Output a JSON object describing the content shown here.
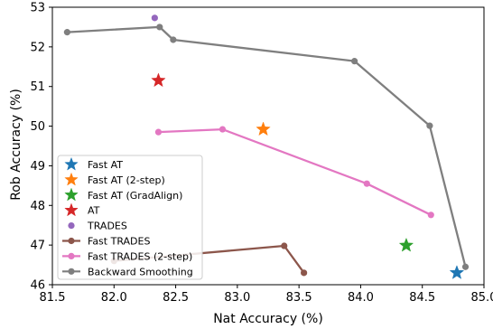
{
  "chart_data": {
    "type": "scatter",
    "xlabel": "Nat Accuracy (%)",
    "ylabel": "Rob Accuracy (%)",
    "xlim": [
      81.5,
      85.0
    ],
    "ylim": [
      46.0,
      53.0
    ],
    "xticks": [
      81.5,
      82.0,
      82.5,
      83.0,
      83.5,
      84.0,
      84.5,
      85.0
    ],
    "xtick_labels": [
      "81.5",
      "82.0",
      "82.5",
      "83.0",
      "83.5",
      "84.0",
      "84.5",
      "85.0"
    ],
    "yticks": [
      46,
      47,
      48,
      49,
      50,
      51,
      52,
      53
    ],
    "ytick_labels": [
      "46",
      "47",
      "48",
      "49",
      "50",
      "51",
      "52",
      "53"
    ],
    "grid": false,
    "legend_position": "bottom-left",
    "series": [
      {
        "name": "Fast AT",
        "marker": "star",
        "line": false,
        "color": "#1f77b4",
        "points": [
          [
            84.78,
            46.3
          ]
        ]
      },
      {
        "name": "Fast AT (2-step)",
        "marker": "star",
        "line": false,
        "color": "#ff7f0e",
        "points": [
          [
            83.21,
            49.92
          ]
        ]
      },
      {
        "name": "Fast AT (GradAlign)",
        "marker": "star",
        "line": false,
        "color": "#2ca02c",
        "points": [
          [
            84.37,
            46.99
          ]
        ]
      },
      {
        "name": "AT",
        "marker": "star",
        "line": false,
        "color": "#d62728",
        "points": [
          [
            82.36,
            51.15
          ]
        ]
      },
      {
        "name": "TRADES",
        "marker": "circle",
        "line": false,
        "color": "#9467bd",
        "points": [
          [
            82.33,
            52.73
          ]
        ]
      },
      {
        "name": "Fast TRADES",
        "marker": "circle",
        "line": true,
        "color": "#8c564b",
        "points": [
          [
            82.0,
            46.6
          ],
          [
            83.38,
            46.98
          ],
          [
            83.54,
            46.3
          ]
        ]
      },
      {
        "name": "Fast TRADES (2-step)",
        "marker": "circle",
        "line": true,
        "color": "#e377c2",
        "points": [
          [
            82.36,
            49.85
          ],
          [
            82.88,
            49.92
          ],
          [
            84.05,
            48.55
          ],
          [
            84.57,
            47.76
          ]
        ]
      },
      {
        "name": "Backward Smoothing",
        "marker": "circle",
        "line": true,
        "color": "#7f7f7f",
        "points": [
          [
            81.62,
            52.37
          ],
          [
            82.37,
            52.5
          ],
          [
            82.48,
            52.18
          ],
          [
            83.95,
            51.64
          ],
          [
            84.56,
            50.01
          ],
          [
            84.85,
            46.45
          ]
        ]
      }
    ]
  }
}
